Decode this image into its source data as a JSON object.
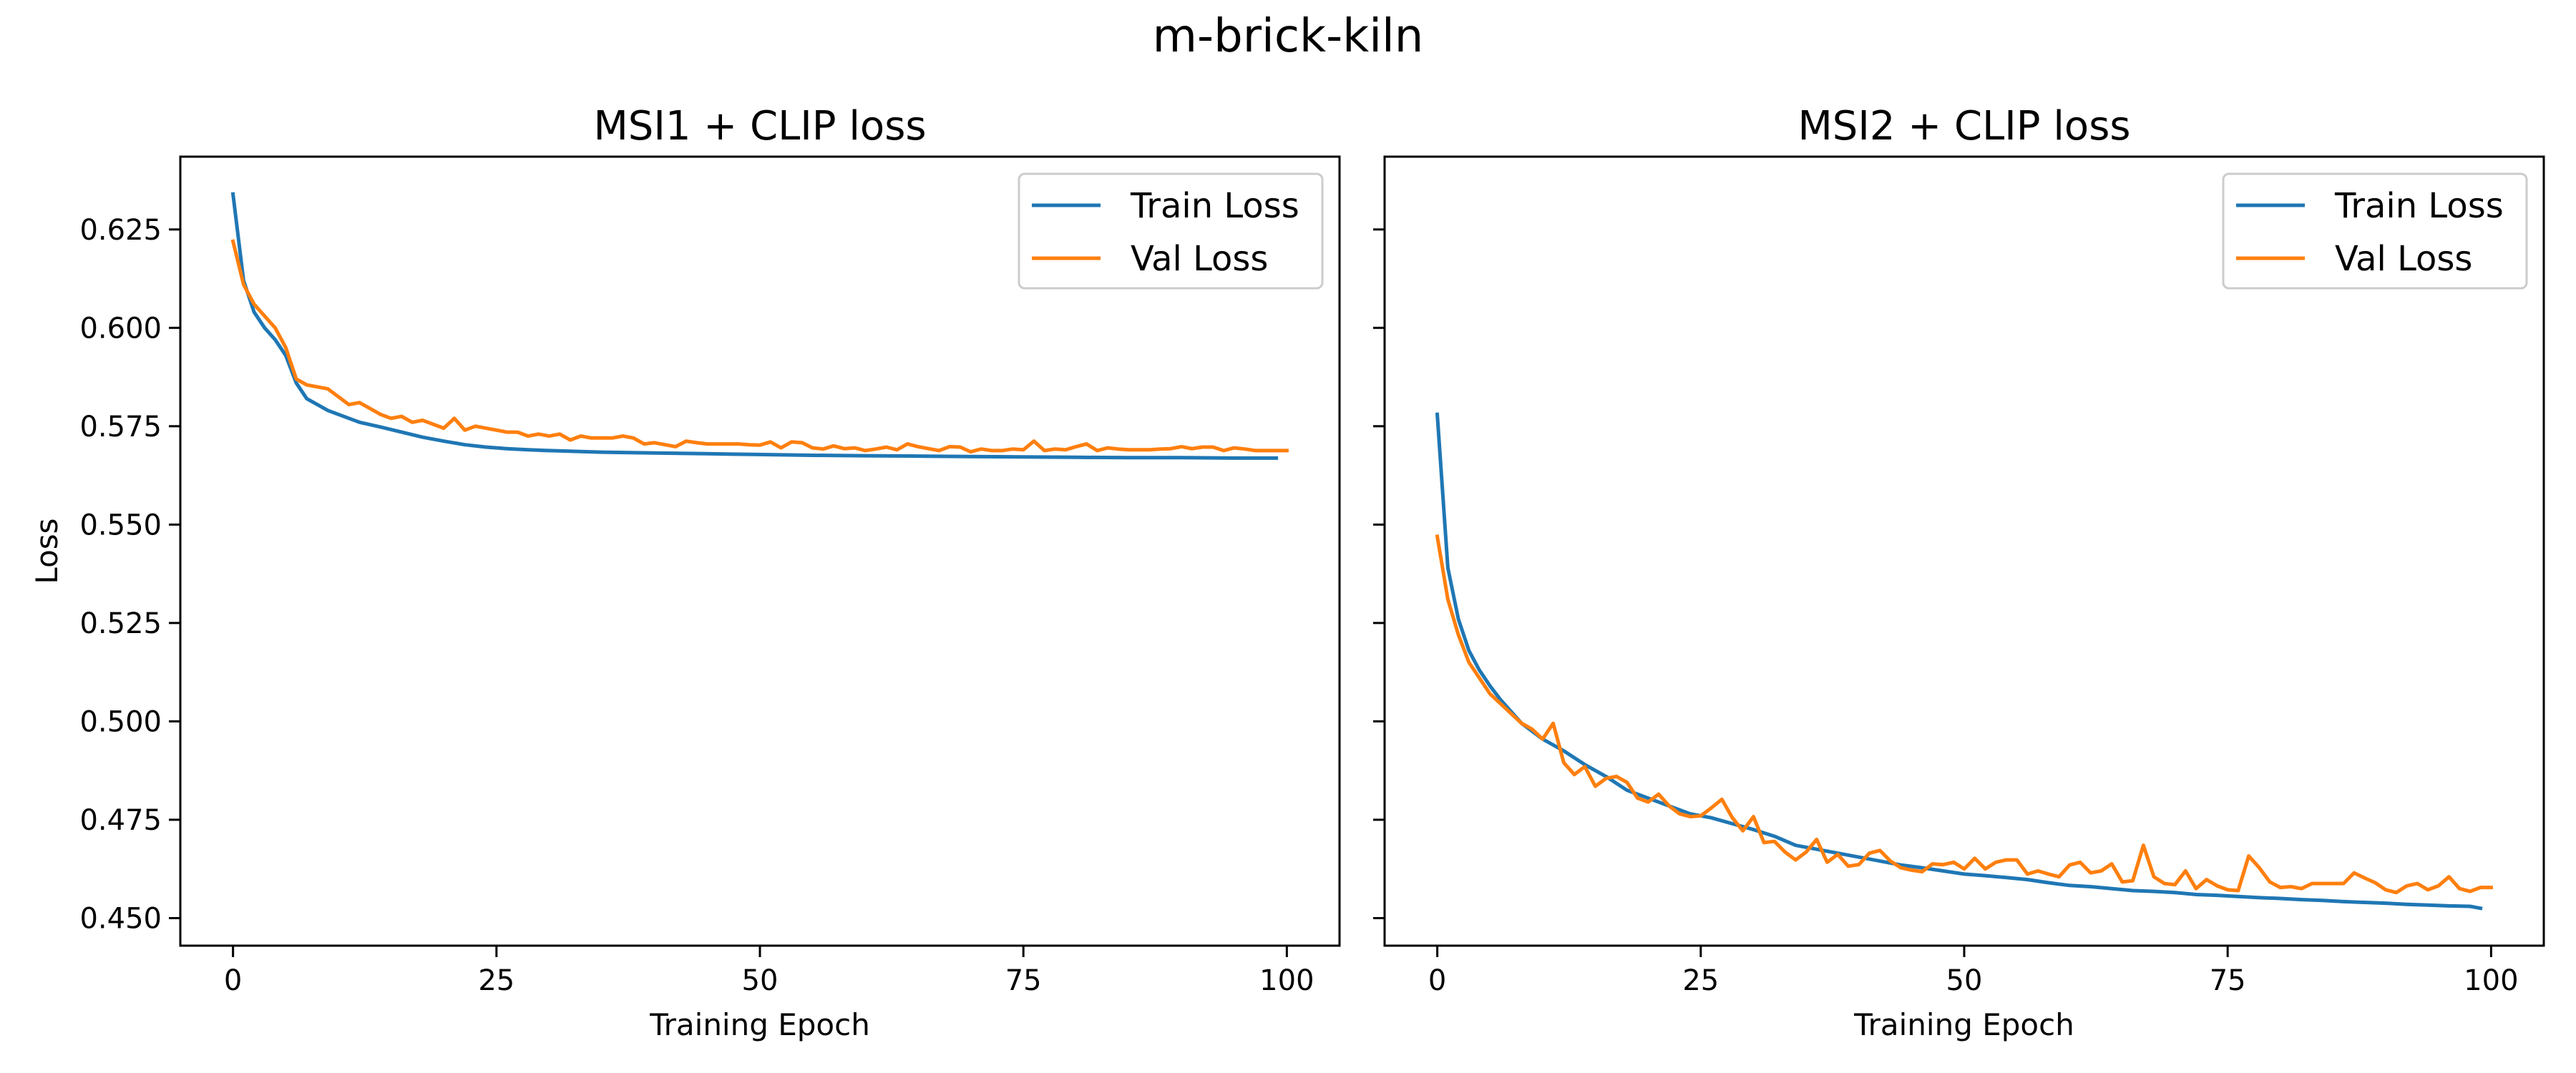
{
  "figure": {
    "suptitle": "m-brick-kiln"
  },
  "colors": {
    "train": "#1f77b4",
    "val": "#ff7f0e",
    "axes": "#000000",
    "background": "#ffffff"
  },
  "chart_data": [
    {
      "type": "line",
      "title": "MSI1 + CLIP loss",
      "xlabel": "Training Epoch",
      "ylabel": "Loss",
      "xlim": [
        -5,
        105
      ],
      "ylim": [
        0.443,
        0.6435
      ],
      "xticks": [
        0,
        25,
        50,
        75,
        100
      ],
      "yticks": [
        0.45,
        0.475,
        0.5,
        0.525,
        0.55,
        0.575,
        0.6,
        0.625
      ],
      "ytick_labels": [
        "0.450",
        "0.475",
        "0.500",
        "0.525",
        "0.550",
        "0.575",
        "0.600",
        "0.625"
      ],
      "show_ytick_labels": true,
      "grid": false,
      "legend": "top-right",
      "series": [
        {
          "name": "Train Loss",
          "x": [
            0,
            1,
            2,
            3,
            4,
            5,
            6,
            7,
            8,
            9,
            10,
            12,
            14,
            16,
            18,
            20,
            22,
            24,
            26,
            28,
            30,
            35,
            40,
            45,
            50,
            55,
            60,
            65,
            70,
            75,
            80,
            85,
            90,
            95,
            99
          ],
          "values": [
            0.634,
            0.612,
            0.604,
            0.6,
            0.597,
            0.593,
            0.586,
            0.582,
            0.5805,
            0.579,
            0.578,
            0.576,
            0.5748,
            0.5735,
            0.5722,
            0.5712,
            0.5703,
            0.5697,
            0.5693,
            0.569,
            0.5688,
            0.5684,
            0.5682,
            0.568,
            0.5678,
            0.5676,
            0.5675,
            0.5674,
            0.5673,
            0.5672,
            0.5671,
            0.567,
            0.567,
            0.5669,
            0.5669
          ]
        },
        {
          "name": "Val Loss",
          "x": [
            0,
            1,
            2,
            3,
            4,
            5,
            6,
            7,
            8,
            9,
            10,
            11,
            12,
            13,
            14,
            15,
            16,
            17,
            18,
            19,
            20,
            21,
            22,
            23,
            24,
            25,
            26,
            27,
            28,
            29,
            30,
            31,
            32,
            33,
            34,
            35,
            36,
            37,
            38,
            39,
            40,
            41,
            42,
            43,
            44,
            45,
            46,
            47,
            48,
            49,
            50,
            51,
            52,
            53,
            54,
            55,
            56,
            57,
            58,
            59,
            60,
            61,
            62,
            63,
            64,
            65,
            66,
            67,
            68,
            69,
            70,
            71,
            72,
            73,
            74,
            75,
            76,
            77,
            78,
            79,
            80,
            81,
            82,
            83,
            84,
            85,
            86,
            87,
            88,
            89,
            90,
            91,
            92,
            93,
            94,
            95,
            96,
            97,
            98,
            99,
            100
          ],
          "values": [
            0.622,
            0.611,
            0.606,
            0.603,
            0.6,
            0.595,
            0.587,
            0.5855,
            0.585,
            0.5845,
            0.5825,
            0.5805,
            0.581,
            0.5795,
            0.578,
            0.577,
            0.5775,
            0.576,
            0.5765,
            0.5755,
            0.5745,
            0.577,
            0.574,
            0.575,
            0.5745,
            0.574,
            0.5735,
            0.5735,
            0.5725,
            0.573,
            0.5725,
            0.573,
            0.5715,
            0.5725,
            0.572,
            0.572,
            0.572,
            0.5725,
            0.572,
            0.5705,
            0.5708,
            0.5703,
            0.5698,
            0.5712,
            0.5708,
            0.5705,
            0.5705,
            0.5705,
            0.5705,
            0.5703,
            0.5702,
            0.571,
            0.5695,
            0.571,
            0.5708,
            0.5695,
            0.5692,
            0.57,
            0.5693,
            0.5695,
            0.5688,
            0.5692,
            0.5697,
            0.569,
            0.5705,
            0.5698,
            0.5693,
            0.5688,
            0.5698,
            0.5697,
            0.5685,
            0.5692,
            0.5688,
            0.5688,
            0.5692,
            0.569,
            0.5712,
            0.5688,
            0.5692,
            0.569,
            0.5698,
            0.5705,
            0.5688,
            0.5695,
            0.5692,
            0.569,
            0.569,
            0.569,
            0.5692,
            0.5693,
            0.5698,
            0.5693,
            0.5697,
            0.5697,
            0.5688,
            0.5695,
            0.5692,
            0.5688,
            0.5688,
            0.5688,
            0.5688
          ]
        }
      ]
    },
    {
      "type": "line",
      "title": "MSI2 + CLIP loss",
      "xlabel": "Training Epoch",
      "ylabel": "",
      "xlim": [
        -5,
        105
      ],
      "ylim": [
        0.443,
        0.6435
      ],
      "xticks": [
        0,
        25,
        50,
        75,
        100
      ],
      "yticks": [
        0.45,
        0.475,
        0.5,
        0.525,
        0.55,
        0.575,
        0.6,
        0.625
      ],
      "show_ytick_labels": false,
      "grid": false,
      "legend": "top-right",
      "series": [
        {
          "name": "Train Loss",
          "x": [
            0,
            1,
            2,
            3,
            4,
            5,
            6,
            7,
            8,
            9,
            10,
            12,
            14,
            16,
            18,
            20,
            22,
            24,
            26,
            28,
            30,
            32,
            34,
            36,
            38,
            40,
            42,
            44,
            46,
            48,
            50,
            52,
            54,
            56,
            58,
            60,
            62,
            64,
            66,
            68,
            70,
            72,
            74,
            76,
            78,
            80,
            82,
            84,
            86,
            88,
            90,
            92,
            94,
            96,
            98,
            99
          ],
          "values": [
            0.578,
            0.539,
            0.526,
            0.518,
            0.513,
            0.509,
            0.5055,
            0.5025,
            0.4995,
            0.4975,
            0.4955,
            0.4925,
            0.489,
            0.486,
            0.4825,
            0.4805,
            0.4785,
            0.4765,
            0.4755,
            0.474,
            0.4725,
            0.4708,
            0.4685,
            0.4675,
            0.4665,
            0.4655,
            0.4645,
            0.4635,
            0.4628,
            0.462,
            0.4612,
            0.4608,
            0.4603,
            0.4598,
            0.459,
            0.4583,
            0.458,
            0.4575,
            0.457,
            0.4568,
            0.4565,
            0.456,
            0.4558,
            0.4555,
            0.4552,
            0.455,
            0.4547,
            0.4545,
            0.4542,
            0.454,
            0.4538,
            0.4535,
            0.4533,
            0.4531,
            0.453,
            0.4525
          ]
        },
        {
          "name": "Val Loss",
          "x": [
            0,
            1,
            2,
            3,
            4,
            5,
            6,
            7,
            8,
            9,
            10,
            11,
            12,
            13,
            14,
            15,
            16,
            17,
            18,
            19,
            20,
            21,
            22,
            23,
            24,
            25,
            26,
            27,
            28,
            29,
            30,
            31,
            32,
            33,
            34,
            35,
            36,
            37,
            38,
            39,
            40,
            41,
            42,
            43,
            44,
            45,
            46,
            47,
            48,
            49,
            50,
            51,
            52,
            53,
            54,
            55,
            56,
            57,
            58,
            59,
            60,
            61,
            62,
            63,
            64,
            65,
            66,
            67,
            68,
            69,
            70,
            71,
            72,
            73,
            74,
            75,
            76,
            77,
            78,
            79,
            80,
            81,
            82,
            83,
            84,
            85,
            86,
            87,
            88,
            89,
            90,
            91,
            92,
            93,
            94,
            95,
            96,
            97,
            98,
            99,
            100
          ],
          "values": [
            0.547,
            0.531,
            0.522,
            0.515,
            0.511,
            0.507,
            0.5045,
            0.502,
            0.4995,
            0.498,
            0.4955,
            0.4995,
            0.4895,
            0.4865,
            0.4885,
            0.4835,
            0.4855,
            0.486,
            0.4845,
            0.4805,
            0.4795,
            0.4815,
            0.4785,
            0.4765,
            0.4758,
            0.476,
            0.478,
            0.4802,
            0.4755,
            0.4722,
            0.4758,
            0.4692,
            0.4695,
            0.4668,
            0.4648,
            0.4668,
            0.47,
            0.4642,
            0.4662,
            0.4632,
            0.4636,
            0.4665,
            0.4672,
            0.4645,
            0.4628,
            0.4622,
            0.4618,
            0.4638,
            0.4636,
            0.4642,
            0.4625,
            0.4652,
            0.4625,
            0.4642,
            0.4648,
            0.4648,
            0.4612,
            0.462,
            0.4612,
            0.4605,
            0.4635,
            0.4642,
            0.4615,
            0.462,
            0.4638,
            0.4592,
            0.4595,
            0.4685,
            0.4605,
            0.4588,
            0.4585,
            0.462,
            0.4575,
            0.4598,
            0.4582,
            0.4572,
            0.457,
            0.4658,
            0.4628,
            0.4592,
            0.4578,
            0.458,
            0.4575,
            0.4588,
            0.4588,
            0.4588,
            0.4588,
            0.4615,
            0.4602,
            0.459,
            0.4572,
            0.4565,
            0.4582,
            0.4588,
            0.4572,
            0.4582,
            0.4605,
            0.4575,
            0.4568,
            0.4578,
            0.4578
          ]
        }
      ]
    }
  ]
}
